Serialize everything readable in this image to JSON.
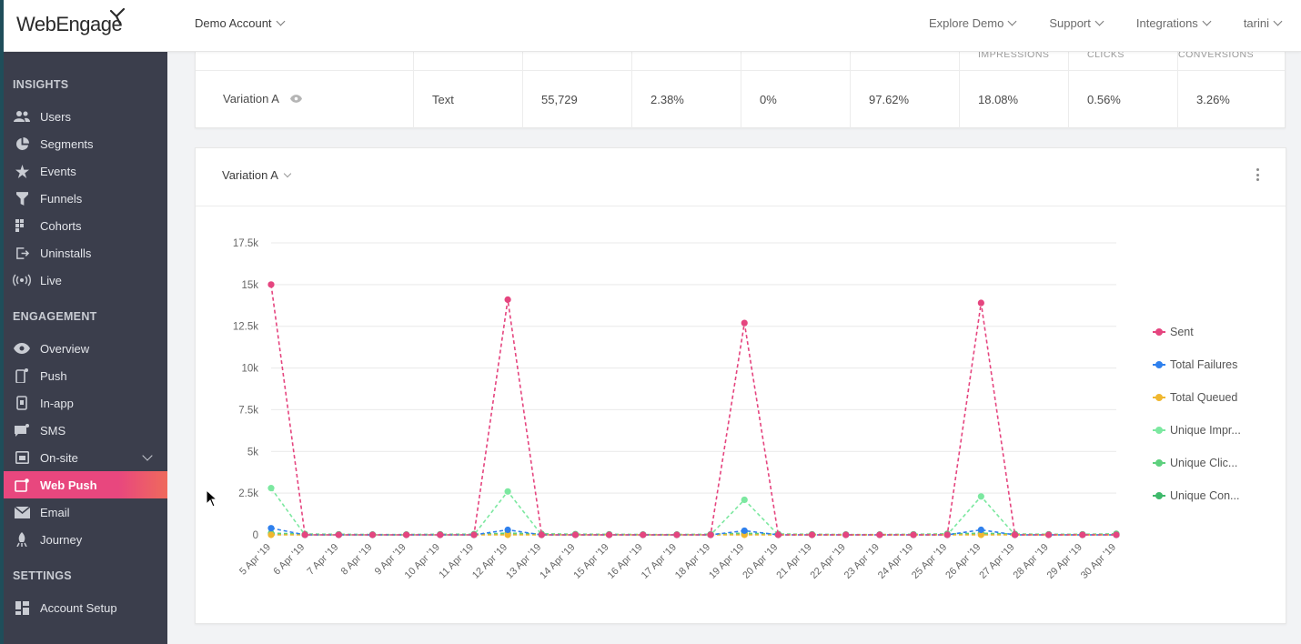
{
  "header": {
    "logo_text": "WebEngage",
    "account": "Demo Account",
    "nav": [
      "Explore Demo",
      "Support",
      "Integrations",
      "tarini"
    ]
  },
  "sidebar": {
    "sections": [
      {
        "title": "INSIGHTS",
        "items": [
          {
            "label": "Users",
            "icon": "users-icon"
          },
          {
            "label": "Segments",
            "icon": "pie-icon"
          },
          {
            "label": "Events",
            "icon": "star-icon"
          },
          {
            "label": "Funnels",
            "icon": "funnel-icon"
          },
          {
            "label": "Cohorts",
            "icon": "grid-icon"
          },
          {
            "label": "Uninstalls",
            "icon": "exit-icon"
          },
          {
            "label": "Live",
            "icon": "broadcast-icon"
          }
        ]
      },
      {
        "title": "ENGAGEMENT",
        "items": [
          {
            "label": "Overview",
            "icon": "eye-icon"
          },
          {
            "label": "Push",
            "icon": "mobile-icon"
          },
          {
            "label": "In-app",
            "icon": "inapp-icon"
          },
          {
            "label": "SMS",
            "icon": "sms-icon"
          },
          {
            "label": "On-site",
            "icon": "onsite-icon"
          },
          {
            "label": "Web Push",
            "icon": "webpush-icon",
            "active": true
          },
          {
            "label": "Email",
            "icon": "mail-icon"
          },
          {
            "label": "Journey",
            "icon": "journey-icon"
          }
        ]
      },
      {
        "title": "SETTINGS",
        "items": [
          {
            "label": "Account Setup",
            "icon": "dashboard-icon"
          }
        ]
      }
    ]
  },
  "table": {
    "partial_headers": [
      "IMPRESSIONS",
      "CLICKS",
      "CONVERSIONS"
    ],
    "row": {
      "variation": "Variation A",
      "type": "Text",
      "sent": "55,729",
      "failures": "2.38%",
      "queued": "0%",
      "delivered": "97.62%",
      "impressions": "18.08%",
      "clicks": "0.56%",
      "conversions": "3.26%"
    }
  },
  "chart_panel": {
    "selector": "Variation A"
  },
  "chart_data": {
    "type": "line",
    "x": [
      "5 Apr '19",
      "6 Apr '19",
      "7 Apr '19",
      "8 Apr '19",
      "9 Apr '19",
      "10 Apr '19",
      "11 Apr '19",
      "12 Apr '19",
      "13 Apr '19",
      "14 Apr '19",
      "15 Apr '19",
      "16 Apr '19",
      "17 Apr '19",
      "18 Apr '19",
      "19 Apr '19",
      "20 Apr '19",
      "21 Apr '19",
      "22 Apr '19",
      "23 Apr '19",
      "24 Apr '19",
      "25 Apr '19",
      "26 Apr '19",
      "27 Apr '19",
      "28 Apr '19",
      "29 Apr '19",
      "30 Apr '19"
    ],
    "yticks": [
      "0",
      "2.5k",
      "5k",
      "7.5k",
      "10k",
      "12.5k",
      "15k",
      "17.5k"
    ],
    "ylim": [
      0,
      17500
    ],
    "legend_position": "right",
    "series": [
      {
        "name": "Sent",
        "color": "#e5457f",
        "values": [
          15000,
          0,
          0,
          0,
          0,
          0,
          0,
          14100,
          0,
          0,
          0,
          0,
          0,
          0,
          12700,
          0,
          0,
          0,
          0,
          0,
          0,
          13900,
          0,
          0,
          0,
          0
        ]
      },
      {
        "name": "Total Failures",
        "color": "#2f80ed",
        "values": [
          400,
          0,
          0,
          0,
          0,
          0,
          0,
          300,
          0,
          0,
          0,
          0,
          0,
          0,
          250,
          0,
          0,
          0,
          0,
          0,
          0,
          300,
          0,
          0,
          0,
          0
        ]
      },
      {
        "name": "Total Queued",
        "color": "#f0b72f",
        "values": [
          0,
          0,
          0,
          0,
          0,
          0,
          0,
          0,
          0,
          0,
          0,
          0,
          0,
          0,
          0,
          0,
          0,
          0,
          0,
          0,
          0,
          0,
          0,
          0,
          0,
          0
        ]
      },
      {
        "name": "Unique Impr...",
        "color": "#7ce8a0",
        "values": [
          2800,
          0,
          0,
          0,
          0,
          0,
          0,
          2600,
          0,
          0,
          0,
          0,
          0,
          0,
          2100,
          0,
          0,
          0,
          0,
          0,
          0,
          2300,
          0,
          0,
          0,
          0
        ]
      },
      {
        "name": "Unique Clic...",
        "color": "#5ed07e",
        "values": [
          100,
          50,
          30,
          20,
          20,
          30,
          40,
          100,
          60,
          40,
          30,
          20,
          20,
          30,
          100,
          50,
          30,
          20,
          20,
          30,
          60,
          100,
          50,
          30,
          30,
          60
        ]
      },
      {
        "name": "Unique Con...",
        "color": "#3fb96b",
        "values": [
          50,
          20,
          20,
          10,
          10,
          20,
          30,
          80,
          30,
          20,
          20,
          10,
          10,
          20,
          60,
          30,
          20,
          10,
          10,
          20,
          40,
          80,
          40,
          20,
          20,
          40
        ]
      }
    ]
  }
}
